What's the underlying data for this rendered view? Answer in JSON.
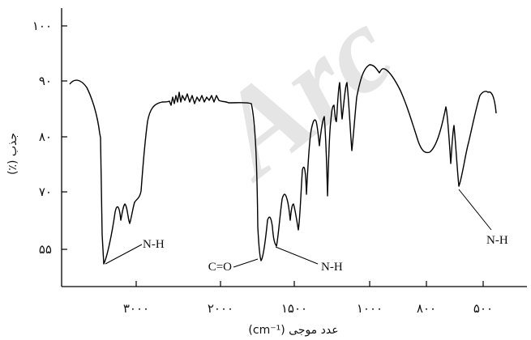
{
  "chart_data": {
    "type": "line",
    "title": "",
    "xlabel": "عدد موجی (cm⁻¹)",
    "ylabel": "جذب (٪)",
    "x_tick_labels": [
      "۳۰۰۰",
      "۲۰۰۰",
      "۱۵۰۰",
      "۱۰۰۰",
      "۸۰۰",
      "۵۰۰"
    ],
    "y_tick_labels": [
      "۱۰۰",
      "۹۰",
      "۸۰",
      "۷۰",
      "۵۵"
    ],
    "watermark": "Arc",
    "annotations": [
      {
        "label": "N-H"
      },
      {
        "label": "C=O"
      },
      {
        "label": "N-H"
      },
      {
        "label": "N-H"
      }
    ],
    "grid": false,
    "legend": "none"
  }
}
